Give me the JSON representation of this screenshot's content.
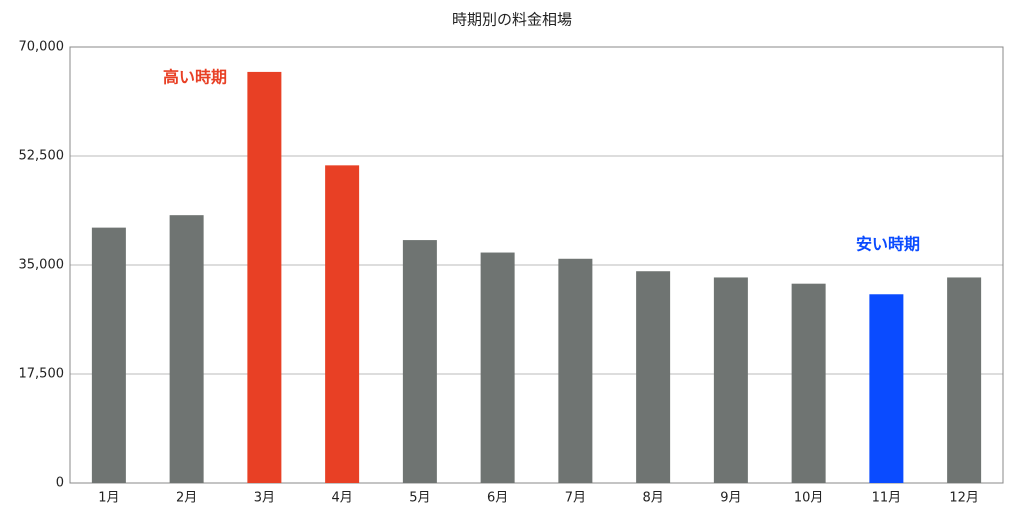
{
  "chart_data": {
    "type": "bar",
    "title": "時期別の料金相場",
    "categories": [
      "1月",
      "2月",
      "3月",
      "4月",
      "5月",
      "6月",
      "7月",
      "8月",
      "9月",
      "10月",
      "11月",
      "12月"
    ],
    "values": [
      41000,
      43000,
      66000,
      51000,
      39000,
      37000,
      36000,
      34000,
      33000,
      32000,
      30300,
      33000
    ],
    "colors": [
      "#6f7472",
      "#6f7472",
      "#e84025",
      "#e84025",
      "#6f7472",
      "#6f7472",
      "#6f7472",
      "#6f7472",
      "#6f7472",
      "#6f7472",
      "#0a4bff",
      "#6f7472"
    ],
    "ylim": [
      0,
      70000
    ],
    "yticks": [
      0,
      {
        "value": 17500,
        "label": "17,500"
      },
      {
        "value": 35000,
        "label": "35,000"
      },
      {
        "value": 52500,
        "label": "52,500"
      },
      {
        "value": 70000,
        "label": "70,000"
      }
    ],
    "grid": true,
    "annotations": [
      {
        "text": "高い時期",
        "color": "#e84025"
      },
      {
        "text": "安い時期",
        "color": "#0a4bff"
      }
    ]
  }
}
